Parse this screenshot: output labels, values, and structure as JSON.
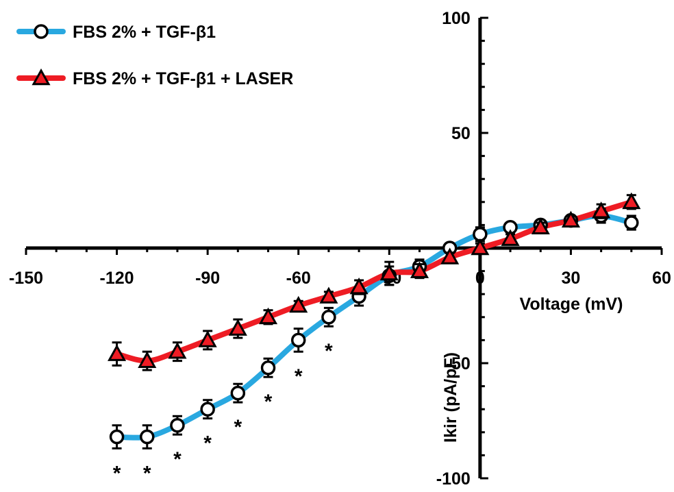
{
  "chart_data": {
    "type": "line",
    "xlabel": "Voltage (mV)",
    "ylabel": "Ikir (pA/pF)",
    "xlim": [
      -150,
      60
    ],
    "ylim": [
      -100,
      100
    ],
    "x_ticks": [
      "-150",
      "-120",
      "-90",
      "-60",
      "-30",
      "0",
      "30",
      "60"
    ],
    "y_ticks": [
      "100",
      "50",
      "-50",
      "-100"
    ],
    "x": [
      -120,
      -110,
      -100,
      -90,
      -80,
      -70,
      -60,
      -50,
      -40,
      -30,
      -20,
      -10,
      0,
      10,
      20,
      30,
      40,
      50
    ],
    "series": [
      {
        "name": "FBS 2% + TGF-β1",
        "color": "#29a8e0",
        "marker": "circle",
        "values": [
          -82,
          -82,
          -77,
          -70,
          -63,
          -52,
          -40,
          -30,
          -21,
          -12,
          -8,
          0,
          6,
          9,
          10,
          12,
          14,
          11
        ],
        "errors": [
          5,
          5,
          4,
          4,
          4,
          4,
          5,
          4,
          4,
          4,
          3,
          2,
          3,
          2,
          2,
          2,
          3,
          3
        ]
      },
      {
        "name": "FBS 2% + TGF-β1 + LASER",
        "color": "#ee1c24",
        "marker": "triangle",
        "values": [
          -46,
          -49,
          -45,
          -40,
          -35,
          -30,
          -25,
          -21,
          -17,
          -11,
          -10,
          -4,
          0,
          4,
          9,
          12,
          16,
          20
        ],
        "errors": [
          5,
          4,
          4,
          4,
          4,
          3,
          2,
          2,
          3,
          5,
          3,
          2,
          2,
          2,
          2,
          2,
          3,
          3
        ]
      }
    ],
    "significance": [
      {
        "x": -120,
        "label": "*"
      },
      {
        "x": -110,
        "label": "*"
      },
      {
        "x": -100,
        "label": "*"
      },
      {
        "x": -90,
        "label": "*"
      },
      {
        "x": -80,
        "label": "*"
      },
      {
        "x": -70,
        "label": "*"
      },
      {
        "x": -60,
        "label": "*"
      },
      {
        "x": -50,
        "label": "*"
      }
    ],
    "legend_position": "top-left",
    "grid": false
  }
}
